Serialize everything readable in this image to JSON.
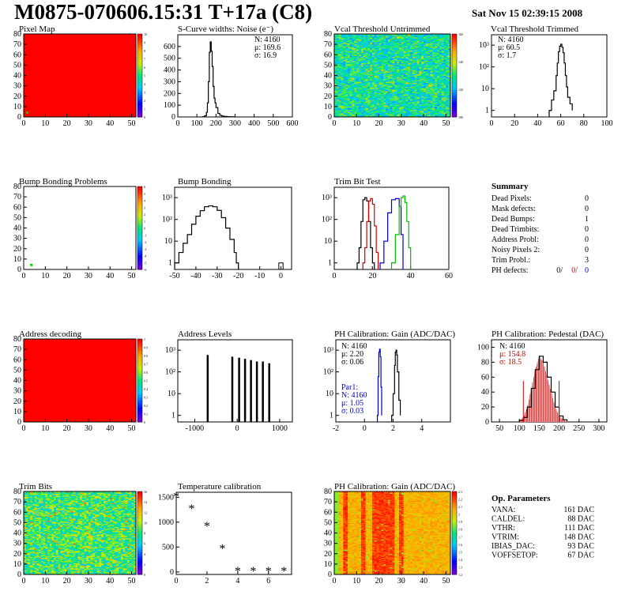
{
  "header": {
    "title": "M0875-070606.15:31 T+17a (C8)",
    "date": "Sat Nov 15 02:39:15 2008"
  },
  "panel_titles": {
    "pixel_map": "Pixel Map",
    "scurve": "S-Curve widths: Noise (e⁻)",
    "vcal_untrimmed": "Vcal Threshold Untrimmed",
    "vcal_trimmed": "Vcal Threshold Trimmed",
    "bump_problems": "Bump Bonding Problems",
    "bump_bonding": "Bump Bonding",
    "trim_bit_test": "Trim Bit Test",
    "address_decoding": "Address decoding",
    "address_levels": "Address Levels",
    "ph_gain": "PH Calibration: Gain (ADC/DAC)",
    "ph_pedestal": "PH Calibration: Pedestal (DAC)",
    "trim_bits": "Trim Bits",
    "temperature": "Temperature calibration",
    "ph_gain_map": "PH Calibration: Gain (ADC/DAC)"
  },
  "stats": {
    "scurve": [
      "N: 4160",
      "μ: 169.6",
      "σ: 16.9"
    ],
    "vcal_trimmed": [
      "N: 4160",
      "μ: 60.5",
      "σ:  1.7"
    ],
    "ph_gain": [
      "N: 4160",
      "μ: 2.20",
      "σ: 0.06"
    ],
    "ph_gain_par1": [
      "Par1:",
      "N: 4160",
      "μ: 1.05",
      "σ: 0.03"
    ],
    "ph_pedestal": [
      "N: 4160",
      "μ: 154.8",
      "σ: 18.5"
    ]
  },
  "summary": {
    "heading": "Summary",
    "rows": [
      {
        "label": "Dead Pixels:",
        "value": "0"
      },
      {
        "label": "Mask defects:",
        "value": "0"
      },
      {
        "label": "Dead Bumps:",
        "value": "1"
      },
      {
        "label": "Dead Trimbits:",
        "value": "0"
      },
      {
        "label": "Address Probl:",
        "value": "0"
      },
      {
        "label": "Noisy Pixels 2:",
        "value": "0"
      },
      {
        "label": "Trim Probl.:",
        "value": "3"
      }
    ],
    "ph_defects": {
      "label": "PH defects:",
      "values": [
        "0/",
        "0/",
        "0"
      ]
    }
  },
  "op_parameters": {
    "heading": "Op. Parameters",
    "rows": [
      {
        "label": "VANA:",
        "value": "161 DAC"
      },
      {
        "label": "CALDEL:",
        "value": "88 DAC"
      },
      {
        "label": "VTHR:",
        "value": "111 DAC"
      },
      {
        "label": "VTRIM:",
        "value": "148 DAC"
      },
      {
        "label": "IBIAS_DAC:",
        "value": "93 DAC"
      },
      {
        "label": "VOFFSETOP:",
        "value": "67 DAC"
      }
    ]
  },
  "colors": {
    "map_red": "#ff0000",
    "blue": "#0000cc",
    "red": "#cc0000",
    "green": "#00bb00",
    "black": "#000000"
  },
  "chart_data": [
    {
      "id": "pixel_map",
      "type": "heatmap",
      "x_ticks": [
        "0",
        "10",
        "20",
        "30",
        "40",
        "50"
      ],
      "y_ticks": [
        "0",
        "10",
        "20",
        "30",
        "40",
        "50",
        "60",
        "70",
        "80"
      ],
      "xlim": [
        0,
        52
      ],
      "ylim": [
        0,
        80
      ],
      "fill": "uniform red",
      "z_ticks": [
        "10",
        "9",
        "8",
        "7",
        "6",
        "5",
        "4",
        "3",
        "2",
        "1",
        "0"
      ]
    },
    {
      "id": "scurve",
      "type": "line",
      "x_ticks": [
        "0",
        "100",
        "200",
        "300",
        "400",
        "500",
        "600"
      ],
      "y_ticks": [
        "0",
        "100",
        "200",
        "300",
        "400",
        "500",
        "600"
      ],
      "xlim": [
        0,
        600
      ],
      "ylim": [
        0,
        700
      ],
      "x": [
        130,
        140,
        150,
        155,
        160,
        165,
        170,
        175,
        180,
        185,
        190,
        195,
        200,
        210,
        220,
        230,
        240,
        260,
        280,
        300
      ],
      "y": [
        2,
        10,
        40,
        120,
        300,
        550,
        640,
        560,
        430,
        260,
        160,
        120,
        80,
        30,
        14,
        8,
        4,
        2,
        1,
        0
      ]
    },
    {
      "id": "vcal_untrimmed",
      "type": "heatmap",
      "x_ticks": [
        "0",
        "10",
        "20",
        "30",
        "40",
        "50"
      ],
      "y_ticks": [
        "0",
        "10",
        "20",
        "30",
        "40",
        "50",
        "60",
        "70",
        "80"
      ],
      "xlim": [
        0,
        52
      ],
      "ylim": [
        0,
        80
      ],
      "z_ticks": [
        "160",
        "140",
        "120",
        "100"
      ]
    },
    {
      "id": "vcal_trimmed",
      "type": "line",
      "log_y": true,
      "x_ticks": [
        "0",
        "20",
        "40",
        "60",
        "80",
        "100"
      ],
      "y_ticks": [
        "1",
        "10",
        "10²",
        "10³"
      ],
      "xlim": [
        0,
        100
      ],
      "ylim": [
        0.5,
        3000
      ],
      "x": [
        50,
        52,
        54,
        56,
        57,
        58,
        59,
        60,
        61,
        62,
        63,
        64,
        65,
        66,
        68,
        70
      ],
      "y": [
        1,
        3,
        8,
        40,
        150,
        500,
        900,
        1100,
        800,
        450,
        150,
        40,
        12,
        4,
        2,
        1
      ]
    },
    {
      "id": "bump_problems",
      "type": "heatmap",
      "x_ticks": [
        "0",
        "10",
        "20",
        "30",
        "40",
        "50"
      ],
      "y_ticks": [
        "0",
        "10",
        "20",
        "30",
        "40",
        "50",
        "60",
        "70",
        "80"
      ],
      "xlim": [
        0,
        52
      ],
      "ylim": [
        0,
        80
      ],
      "z_ticks": [
        "6",
        "5",
        "4",
        "3",
        "2",
        "1",
        "0",
        "-1",
        "-2",
        "-3",
        "-4",
        "-5",
        "-6"
      ],
      "marked_pixel": [
        3,
        4
      ]
    },
    {
      "id": "bump_bonding",
      "type": "line",
      "log_y": true,
      "x_ticks": [
        "-50",
        "-40",
        "-30",
        "-20",
        "-10",
        "0"
      ],
      "y_ticks": [
        "1",
        "10",
        "10²",
        "10³"
      ],
      "xlim": [
        -50,
        5
      ],
      "ylim": [
        0.5,
        3000
      ],
      "x": [
        -50,
        -48,
        -46,
        -44,
        -42,
        -40,
        -38,
        -36,
        -34,
        -32,
        -30,
        -28,
        -26,
        -24,
        -22,
        -21,
        -20,
        0
      ],
      "y": [
        1,
        3,
        8,
        20,
        60,
        140,
        250,
        380,
        420,
        380,
        260,
        120,
        40,
        12,
        3,
        1,
        0,
        1
      ]
    },
    {
      "id": "trim_bit_test",
      "type": "line",
      "log_y": true,
      "x_ticks": [
        "0",
        "20",
        "40",
        "60"
      ],
      "y_ticks": [
        "1",
        "10",
        "10²",
        "10³"
      ],
      "xlim": [
        0,
        60
      ],
      "ylim": [
        0.5,
        3000
      ],
      "series": [
        {
          "color": "black",
          "x": [
            12,
            13,
            14,
            15,
            16,
            17,
            18,
            19,
            20,
            21
          ],
          "y": [
            1,
            5,
            80,
            800,
            1000,
            700,
            80,
            5,
            1,
            0
          ]
        },
        {
          "color": "red",
          "x": [
            15,
            16,
            17,
            18,
            19,
            20,
            21,
            22,
            23
          ],
          "y": [
            1,
            5,
            80,
            700,
            900,
            500,
            50,
            3,
            0
          ]
        },
        {
          "color": "blue",
          "x": [
            24,
            26,
            28,
            30,
            32,
            34,
            35,
            36
          ],
          "y": [
            1,
            10,
            200,
            800,
            900,
            400,
            20,
            0
          ]
        },
        {
          "color": "green",
          "x": [
            30,
            32,
            34,
            35,
            36,
            37,
            38,
            39,
            40
          ],
          "y": [
            1,
            20,
            400,
            1000,
            1200,
            600,
            80,
            5,
            0
          ]
        }
      ]
    },
    {
      "id": "address_decoding",
      "type": "heatmap",
      "x_ticks": [
        "0",
        "10",
        "20",
        "30",
        "40",
        "50"
      ],
      "y_ticks": [
        "0",
        "10",
        "20",
        "30",
        "40",
        "50",
        "60",
        "70",
        "80"
      ],
      "xlim": [
        0,
        52
      ],
      "ylim": [
        0,
        80
      ],
      "fill": "uniform red",
      "z_ticks": [
        "1",
        "0.9",
        "0.8",
        "0.7",
        "0.6",
        "0.5",
        "0.4",
        "0.3",
        "0.2",
        "0.1",
        "0"
      ]
    },
    {
      "id": "address_levels",
      "type": "bar",
      "log_y": true,
      "x_ticks": [
        "-1000",
        "0",
        "1000"
      ],
      "y_ticks": [
        "1",
        "10",
        "10²",
        "10³"
      ],
      "xlim": [
        -1400,
        1300
      ],
      "ylim": [
        0.5,
        3000
      ],
      "x": [
        -700,
        -120,
        40,
        180,
        320,
        460,
        600,
        750
      ],
      "y": [
        600,
        500,
        450,
        400,
        350,
        300,
        300,
        250
      ]
    },
    {
      "id": "ph_gain",
      "type": "line",
      "log_y": true,
      "x_ticks": [
        "-2",
        "0",
        "2",
        "4"
      ],
      "y_ticks": [
        "1",
        "10",
        "10²",
        "10³"
      ],
      "xlim": [
        -2,
        6
      ],
      "ylim": [
        0.5,
        3000
      ],
      "series": [
        {
          "color": "black",
          "x": [
            1.9,
            2.0,
            2.1,
            2.15,
            2.2,
            2.25,
            2.3,
            2.4,
            2.5
          ],
          "y": [
            1,
            10,
            200,
            800,
            1000,
            600,
            100,
            5,
            1
          ]
        },
        {
          "color": "blue",
          "x": [
            0.9,
            0.95,
            1.0,
            1.05,
            1.1,
            1.15,
            1.2
          ],
          "y": [
            1,
            60,
            800,
            1100,
            500,
            20,
            1
          ]
        }
      ]
    },
    {
      "id": "ph_pedestal",
      "type": "line",
      "x_ticks": [
        "50",
        "100",
        "150",
        "200",
        "250",
        "300"
      ],
      "y_ticks": [
        "0",
        "20",
        "40",
        "60",
        "80",
        "100"
      ],
      "xlim": [
        30,
        320
      ],
      "ylim": [
        0,
        110
      ],
      "x": [
        100,
        110,
        120,
        130,
        140,
        150,
        160,
        170,
        180,
        190,
        200,
        210,
        220
      ],
      "y": [
        2,
        6,
        20,
        45,
        70,
        88,
        80,
        60,
        40,
        20,
        8,
        3,
        1
      ]
    },
    {
      "id": "trim_bits",
      "type": "heatmap",
      "x_ticks": [
        "0",
        "10",
        "20",
        "30",
        "40",
        "50"
      ],
      "y_ticks": [
        "0",
        "10",
        "20",
        "30",
        "40",
        "50",
        "60",
        "70",
        "80"
      ],
      "xlim": [
        0,
        52
      ],
      "ylim": [
        0,
        80
      ],
      "z_ticks": [
        "16",
        "14",
        "12",
        "10",
        "8",
        "6",
        "4",
        "2",
        "0"
      ]
    },
    {
      "id": "temperature",
      "type": "scatter",
      "x_ticks": [
        "0",
        "2",
        "4",
        "6"
      ],
      "y_ticks": [
        "0",
        "500",
        "1000",
        "1500"
      ],
      "xlim": [
        0,
        7.5
      ],
      "ylim": [
        -50,
        1600
      ],
      "x": [
        0,
        1,
        2,
        3,
        4,
        5,
        6,
        7
      ],
      "y": [
        1500,
        1250,
        900,
        450,
        0,
        0,
        0,
        0
      ]
    },
    {
      "id": "ph_gain_map",
      "type": "heatmap",
      "x_ticks": [
        "0",
        "10",
        "20",
        "30",
        "40",
        "50"
      ],
      "y_ticks": [
        "0",
        "10",
        "20",
        "30",
        "40",
        "50",
        "60",
        "70",
        "80"
      ],
      "xlim": [
        0,
        52
      ],
      "ylim": [
        0,
        80
      ],
      "z_ticks": [
        "2.3",
        "2.2",
        "2.1",
        "2",
        "1.9",
        "1.8",
        "1.7",
        "1.6",
        "1.5",
        "1.4",
        "1.3",
        "1.2"
      ]
    }
  ]
}
